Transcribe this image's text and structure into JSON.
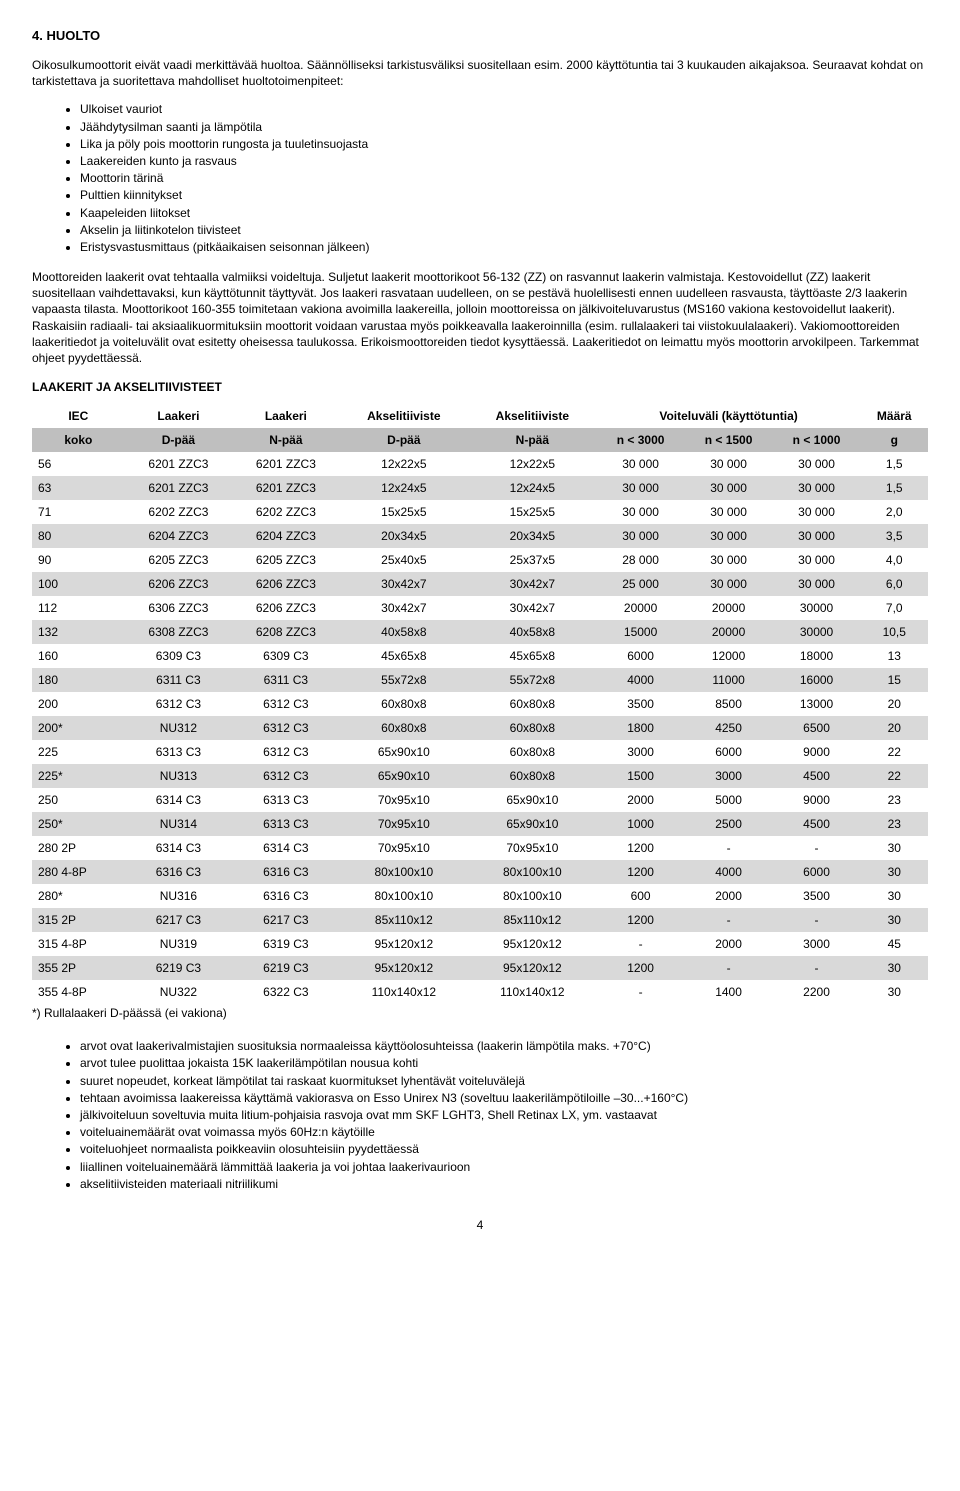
{
  "section": {
    "title": "4. HUOLTO",
    "intro1": "Oikosulkumoottorit eivät vaadi merkittävää huoltoa. Säännölliseksi tarkistusväliksi suositellaan esim. 2000 käyttötuntia tai 3 kuukauden aikajaksoa. Seuraavat kohdat on tarkistettava ja suoritettava mahdolliset huoltotoimenpiteet:",
    "checklist": [
      "Ulkoiset vauriot",
      "Jäähdytysilman saanti ja lämpötila",
      "Lika ja pöly pois moottorin rungosta ja tuuletinsuojasta",
      "Laakereiden kunto ja rasvaus",
      "Moottorin tärinä",
      "Pulttien kiinnitykset",
      "Kaapeleiden liitokset",
      "Akselin ja liitinkotelon tiivisteet",
      "Eristysvastusmittaus (pitkäaikaisen seisonnan jälkeen)"
    ],
    "intro2": "Moottoreiden laakerit ovat tehtaalla valmiiksi voideltuja. Suljetut laakerit moottorikoot 56-132 (ZZ) on rasvannut laakerin valmistaja. Kestovoidellut (ZZ) laakerit suositellaan vaihdettavaksi, kun käyttötunnit täyttyvät. Jos laakeri rasvataan uudelleen, on se pestävä huolellisesti ennen uudelleen rasvausta, täyttöaste 2/3 laakerin vapaasta tilasta. Moottorikoot 160-355 toimitetaan vakiona avoimilla laakereilla, jolloin moottoreissa on jälkivoiteluvarustus (MS160 vakiona kestovoidellut laakerit). Raskaisiin radiaali- tai aksiaalikuormituksiin moottorit voidaan varustaa myös poikkeavalla laakeroinnilla (esim. rullalaakeri tai viistokuulalaakeri). Vakiomoottoreiden laakeritiedot ja voiteluvälit ovat esitetty oheisessa taulukossa. Erikoismoottoreiden tiedot kysyttäessä. Laakeritiedot on leimattu myös moottorin arvokilpeen. Tarkemmat ohjeet pyydettäessä.",
    "tableTitle": "LAAKERIT JA AKSELITIIVISTEET"
  },
  "table": {
    "head1": [
      "IEC",
      "Laakeri",
      "Laakeri",
      "Akselitiiviste",
      "Akselitiiviste",
      "Voiteluväli (käyttötuntia)",
      "Määrä"
    ],
    "head2": [
      "koko",
      "D-pää",
      "N-pää",
      "D-pää",
      "N-pää",
      "n < 3000",
      "n < 1500",
      "n < 1000",
      "g"
    ],
    "rows": [
      {
        "alt": false,
        "c": [
          "56",
          "6201 ZZC3",
          "6201 ZZC3",
          "12x22x5",
          "12x22x5",
          "30 000",
          "30 000",
          "30 000",
          "1,5"
        ]
      },
      {
        "alt": true,
        "c": [
          "63",
          "6201 ZZC3",
          "6201 ZZC3",
          "12x24x5",
          "12x24x5",
          "30 000",
          "30 000",
          "30 000",
          "1,5"
        ]
      },
      {
        "alt": false,
        "c": [
          "71",
          "6202 ZZC3",
          "6202 ZZC3",
          "15x25x5",
          "15x25x5",
          "30 000",
          "30 000",
          "30 000",
          "2,0"
        ]
      },
      {
        "alt": true,
        "c": [
          "80",
          "6204 ZZC3",
          "6204 ZZC3",
          "20x34x5",
          "20x34x5",
          "30 000",
          "30 000",
          "30 000",
          "3,5"
        ]
      },
      {
        "alt": false,
        "c": [
          "90",
          "6205 ZZC3",
          "6205 ZZC3",
          "25x40x5",
          "25x37x5",
          "28 000",
          "30 000",
          "30 000",
          "4,0"
        ]
      },
      {
        "alt": true,
        "c": [
          "100",
          "6206 ZZC3",
          "6206 ZZC3",
          "30x42x7",
          "30x42x7",
          "25 000",
          "30 000",
          "30 000",
          "6,0"
        ]
      },
      {
        "alt": false,
        "c": [
          "112",
          "6306 ZZC3",
          "6206 ZZC3",
          "30x42x7",
          "30x42x7",
          "20000",
          "20000",
          "30000",
          "7,0"
        ]
      },
      {
        "alt": true,
        "c": [
          "132",
          "6308 ZZC3",
          "6208 ZZC3",
          "40x58x8",
          "40x58x8",
          "15000",
          "20000",
          "30000",
          "10,5"
        ]
      },
      {
        "alt": false,
        "c": [
          "160",
          "6309 C3",
          "6309 C3",
          "45x65x8",
          "45x65x8",
          "6000",
          "12000",
          "18000",
          "13"
        ]
      },
      {
        "alt": true,
        "c": [
          "180",
          "6311 C3",
          "6311 C3",
          "55x72x8",
          "55x72x8",
          "4000",
          "11000",
          "16000",
          "15"
        ]
      },
      {
        "alt": false,
        "c": [
          "200",
          "6312 C3",
          "6312 C3",
          "60x80x8",
          "60x80x8",
          "3500",
          "8500",
          "13000",
          "20"
        ]
      },
      {
        "alt": true,
        "c": [
          "200*",
          "NU312",
          "6312 C3",
          "60x80x8",
          "60x80x8",
          "1800",
          "4250",
          "6500",
          "20"
        ]
      },
      {
        "alt": false,
        "c": [
          "225",
          "6313 C3",
          "6312 C3",
          "65x90x10",
          "60x80x8",
          "3000",
          "6000",
          "9000",
          "22"
        ]
      },
      {
        "alt": true,
        "c": [
          "225*",
          "NU313",
          "6312 C3",
          "65x90x10",
          "60x80x8",
          "1500",
          "3000",
          "4500",
          "22"
        ]
      },
      {
        "alt": false,
        "c": [
          "250",
          "6314 C3",
          "6313 C3",
          "70x95x10",
          "65x90x10",
          "2000",
          "5000",
          "9000",
          "23"
        ]
      },
      {
        "alt": true,
        "c": [
          "250*",
          "NU314",
          "6313 C3",
          "70x95x10",
          "65x90x10",
          "1000",
          "2500",
          "4500",
          "23"
        ]
      },
      {
        "alt": false,
        "c": [
          "280 2P",
          "6314 C3",
          "6314 C3",
          "70x95x10",
          "70x95x10",
          "1200",
          "-",
          "-",
          "30"
        ]
      },
      {
        "alt": true,
        "c": [
          "280 4-8P",
          "6316 C3",
          "6316 C3",
          "80x100x10",
          "80x100x10",
          "1200",
          "4000",
          "6000",
          "30"
        ]
      },
      {
        "alt": false,
        "c": [
          "280*",
          "NU316",
          "6316 C3",
          "80x100x10",
          "80x100x10",
          "600",
          "2000",
          "3500",
          "30"
        ]
      },
      {
        "alt": true,
        "c": [
          "315 2P",
          "6217 C3",
          "6217 C3",
          "85x110x12",
          "85x110x12",
          "1200",
          "-",
          "-",
          "30"
        ]
      },
      {
        "alt": false,
        "c": [
          "315 4-8P",
          "NU319",
          "6319 C3",
          "95x120x12",
          "95x120x12",
          "-",
          "2000",
          "3000",
          "45"
        ]
      },
      {
        "alt": true,
        "c": [
          "355 2P",
          "6219 C3",
          "6219 C3",
          "95x120x12",
          "95x120x12",
          "1200",
          "-",
          "-",
          "30"
        ]
      },
      {
        "alt": false,
        "c": [
          "355 4-8P",
          "NU322",
          "6322 C3",
          "110x140x12",
          "110x140x12",
          "-",
          "1400",
          "2200",
          "30"
        ]
      }
    ],
    "footnote": "*) Rullalaakeri D-päässä (ei vakiona)"
  },
  "notes": [
    "arvot ovat laakerivalmistajien suosituksia normaaleissa käyttöolosuhteissa (laakerin lämpötila maks. +70°C)",
    "arvot tulee puolittaa jokaista 15K laakerilämpötilan nousua kohti",
    "suuret nopeudet, korkeat lämpötilat tai raskaat kuormitukset lyhentävät voiteluvälejä",
    "tehtaan avoimissa laakereissa käyttämä vakiorasva on Esso Unirex N3 (soveltuu laakerilämpötiloille –30...+160°C)",
    "jälkivoiteluun soveltuvia muita litium-pohjaisia rasvoja ovat mm SKF LGHT3, Shell Retinax LX, ym. vastaavat",
    "voiteluainemäärät ovat voimassa myös 60Hz:n käytöille",
    "voiteluohjeet normaalista poikkeaviin olosuhteisiin pyydettäessä",
    "liiallinen voiteluainemäärä lämmittää laakeria ja voi johtaa laakerivaurioon",
    "akselitiivisteiden materiaali nitriilikumi"
  ],
  "pageNumber": "4"
}
